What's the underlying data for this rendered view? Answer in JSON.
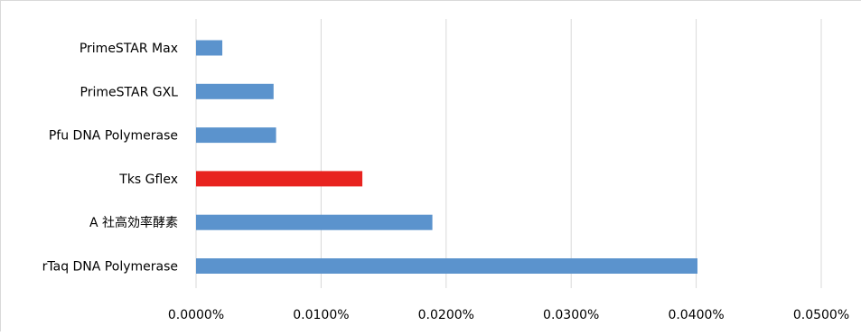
{
  "chart_data": {
    "type": "bar",
    "orientation": "horizontal",
    "categories": [
      "PrimeSTAR Max",
      "PrimeSTAR GXL",
      "Pfu DNA Polymerase",
      "Tks Gflex",
      "A 社高効率酵素",
      "rTaq DNA Polymerase"
    ],
    "values": [
      0.0021,
      0.0062,
      0.0064,
      0.0133,
      0.0189,
      0.0401
    ],
    "xlim": [
      0,
      0.0005
    ],
    "x_ticks": [
      0,
      0.0001,
      0.0002,
      0.0003,
      0.0004,
      0.0005
    ],
    "x_tick_labels": [
      "0.0000%",
      "0.0100%",
      "0.0200%",
      "0.0300%",
      "0.0400%",
      "0.0500%"
    ],
    "value_unit_note": "",
    "values_percent": [
      0.0021,
      0.0062,
      0.0064,
      0.0133,
      0.0189,
      0.0401
    ],
    "grid": true,
    "title": "",
    "xlabel": "",
    "ylabel": "",
    "colors": {
      "default": "#5b93cd",
      "highlight": "#e8231f",
      "grid": "#d9d9d9"
    },
    "highlight_category": "Tks Gflex"
  }
}
